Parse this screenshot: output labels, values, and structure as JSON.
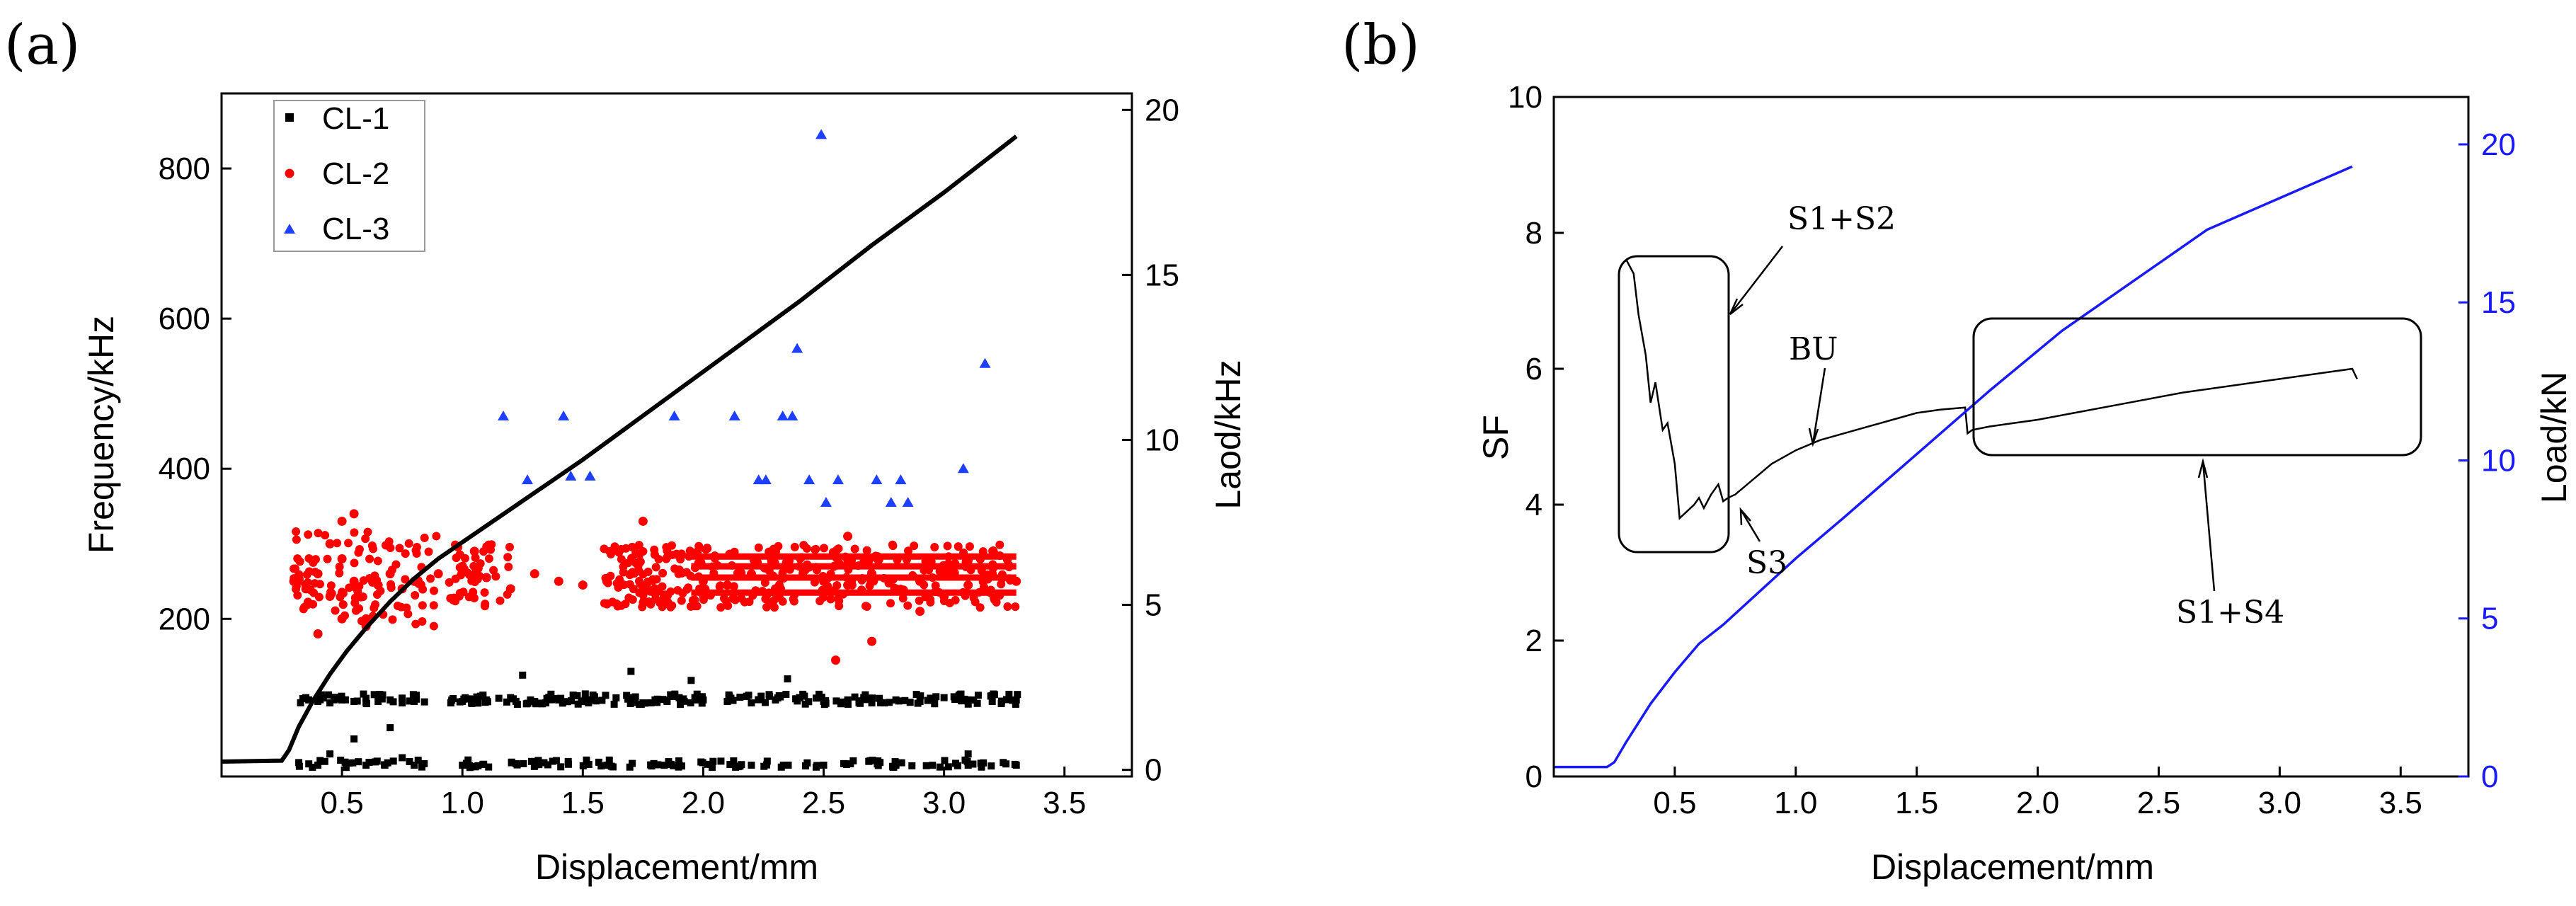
{
  "figure": {
    "panel_a_label": "(a)",
    "panel_b_label": "(b)"
  },
  "colors": {
    "cl1": "#000000",
    "cl2": "#ff0000",
    "cl3": "#1f3fff",
    "load_b": "#1a1aff",
    "axis": "#000000"
  },
  "chart_data": [
    {
      "panel": "(a)",
      "type": "scatter",
      "xlabel": "Displacement/mm",
      "ylabel": "Frequency/kHz",
      "y2label": "Laod/kHz",
      "xlim": [
        0,
        3.78
      ],
      "ylim": [
        -10,
        900
      ],
      "y2lim": [
        -0.2,
        20.5
      ],
      "xticks": [
        "0.5",
        "1.0",
        "1.5",
        "2.0",
        "2.5",
        "3.0",
        "3.5"
      ],
      "yticks": [
        "200",
        "400",
        "600",
        "800"
      ],
      "y2ticks": [
        "0",
        "5",
        "10",
        "15",
        "20"
      ],
      "legend": [
        "CL-1",
        "CL-2",
        "CL-3"
      ],
      "legend_position": "top-left",
      "series": [
        {
          "name": "CL-1",
          "marker": "square",
          "points_description": "dense band near 95 kHz and near 5 kHz from 0.3 to 3.3 mm",
          "x": [
            0.35,
            0.4,
            0.45,
            0.5,
            0.55,
            0.6,
            0.65,
            0.7,
            0.75,
            0.8,
            1.0,
            1.1,
            1.2,
            1.3,
            1.4,
            1.5,
            1.7,
            1.75,
            1.8,
            1.85,
            1.9,
            2.0,
            2.1,
            2.2,
            2.3,
            2.4,
            2.5,
            2.6,
            2.7,
            2.8,
            2.9,
            3.0,
            3.1,
            3.2,
            3.3,
            0.45,
            0.55,
            0.7,
            0.75,
            1.25,
            1.7,
            1.95,
            2.35,
            3.1,
            0.4,
            0.6,
            0.8,
            1.0,
            1.3,
            1.6,
            1.9,
            2.2,
            2.5,
            2.8,
            3.1,
            3.3
          ],
          "y": [
            95,
            90,
            88,
            92,
            90,
            88,
            90,
            92,
            88,
            90,
            90,
            92,
            95,
            90,
            92,
            90,
            95,
            88,
            92,
            90,
            95,
            92,
            90,
            88,
            92,
            95,
            90,
            92,
            88,
            92,
            90,
            95,
            92,
            90,
            92,
            20,
            40,
            55,
            15,
            125,
            130,
            118,
            120,
            20,
            5,
            5,
            5,
            5,
            5,
            5,
            5,
            5,
            5,
            5,
            5,
            5
          ]
        },
        {
          "name": "CL-2",
          "marker": "circle",
          "points_description": "dense band 200-310 kHz",
          "x": [
            0.3,
            0.35,
            0.4,
            0.45,
            0.5,
            0.55,
            0.6,
            0.65,
            0.7,
            0.75,
            0.8,
            0.9,
            1.0,
            1.05,
            1.1,
            1.2,
            1.3,
            1.4,
            1.5,
            1.6,
            1.7,
            1.8,
            1.9,
            2.0,
            2.1,
            2.2,
            2.3,
            2.4,
            2.5,
            2.6,
            2.7,
            2.8,
            2.9,
            3.0,
            3.1,
            3.2,
            3.3,
            0.4,
            0.5,
            0.6,
            0.45,
            0.55,
            1.6,
            2.3,
            2.6,
            2.7,
            2.9,
            3.0,
            0.5,
            1.75,
            2.55
          ],
          "y": [
            250,
            240,
            260,
            230,
            280,
            250,
            200,
            245,
            260,
            240,
            250,
            260,
            270,
            290,
            255,
            240,
            260,
            250,
            245,
            250,
            260,
            240,
            265,
            250,
            245,
            260,
            240,
            270,
            250,
            245,
            260,
            240,
            250,
            270,
            245,
            260,
            250,
            180,
            200,
            190,
            300,
            340,
            220,
            290,
            310,
            170,
            210,
            230,
            330,
            330,
            145
          ]
        },
        {
          "name": "CL-3",
          "marker": "triangle",
          "x": [
            1.17,
            1.27,
            1.42,
            1.45,
            1.53,
            1.88,
            2.13,
            2.23,
            2.26,
            2.33,
            2.37,
            2.39,
            2.44,
            2.49,
            2.51,
            2.56,
            2.72,
            2.78,
            2.82,
            2.85,
            3.08,
            3.17
          ],
          "y": [
            470,
            385,
            470,
            390,
            390,
            470,
            470,
            385,
            385,
            470,
            470,
            560,
            385,
            845,
            355,
            385,
            385,
            355,
            385,
            355,
            400,
            540
          ]
        },
        {
          "name": "Load",
          "type": "line",
          "axis": "right",
          "x": [
            0.0,
            0.25,
            0.28,
            0.32,
            0.38,
            0.45,
            0.52,
            0.6,
            0.7,
            0.8,
            0.9,
            1.0,
            1.2,
            1.5,
            1.8,
            2.1,
            2.4,
            2.7,
            3.0,
            3.3
          ],
          "y": [
            0.25,
            0.28,
            0.6,
            1.3,
            2.1,
            2.9,
            3.6,
            4.3,
            5.1,
            5.8,
            6.4,
            6.9,
            7.9,
            9.4,
            11.0,
            12.6,
            14.2,
            15.9,
            17.5,
            19.2
          ]
        }
      ]
    },
    {
      "panel": "(b)",
      "type": "line",
      "xlabel": "Displacement/mm",
      "ylabel": "SF",
      "y2label": "Load/kN",
      "xlim": [
        0,
        3.78
      ],
      "ylim": [
        0,
        10
      ],
      "y2lim": [
        0,
        21.5
      ],
      "xticks": [
        "0.5",
        "1.0",
        "1.5",
        "2.0",
        "2.5",
        "3.0",
        "3.5"
      ],
      "yticks": [
        "0",
        "2",
        "4",
        "6",
        "8",
        "10"
      ],
      "y2ticks": [
        "0",
        "5",
        "10",
        "15",
        "20"
      ],
      "annotations": [
        "S1+S2",
        "BU",
        "S3",
        "S1+S4"
      ],
      "series": [
        {
          "name": "SF",
          "axis": "left",
          "x": [
            0.3,
            0.33,
            0.35,
            0.38,
            0.4,
            0.42,
            0.45,
            0.47,
            0.5,
            0.52,
            0.55,
            0.58,
            0.6,
            0.62,
            0.65,
            0.68,
            0.7,
            0.72,
            0.75,
            0.8,
            0.85,
            0.9,
            1.0,
            1.1,
            1.2,
            1.3,
            1.4,
            1.5,
            1.6,
            1.7,
            1.71,
            1.73,
            1.8,
            1.9,
            2.0,
            2.3,
            2.6,
            3.0,
            3.3,
            3.32
          ],
          "y": [
            7.6,
            7.4,
            6.8,
            6.2,
            5.5,
            5.8,
            5.1,
            5.2,
            4.6,
            3.8,
            3.9,
            4.0,
            4.1,
            3.95,
            4.15,
            4.3,
            4.05,
            4.1,
            4.15,
            4.3,
            4.45,
            4.6,
            4.8,
            4.95,
            5.05,
            5.15,
            5.25,
            5.35,
            5.4,
            5.43,
            5.05,
            5.1,
            5.15,
            5.2,
            5.25,
            5.45,
            5.65,
            5.85,
            6.0,
            5.85
          ]
        },
        {
          "name": "Load",
          "axis": "right",
          "x": [
            0.0,
            0.22,
            0.25,
            0.3,
            0.4,
            0.5,
            0.6,
            0.7,
            0.8,
            1.0,
            1.2,
            1.5,
            1.8,
            2.1,
            2.4,
            2.7,
            3.0,
            3.3
          ],
          "y": [
            0.3,
            0.3,
            0.45,
            1.1,
            2.3,
            3.3,
            4.2,
            4.8,
            5.5,
            6.9,
            8.2,
            10.2,
            12.2,
            14.1,
            15.7,
            17.3,
            18.3,
            19.3
          ]
        }
      ]
    }
  ]
}
